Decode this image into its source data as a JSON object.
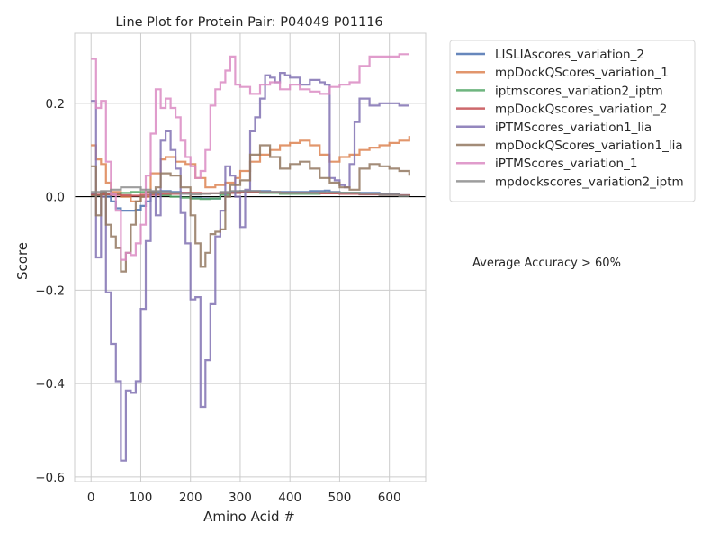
{
  "chart_data": {
    "type": "line",
    "title": "Line Plot for Protein Pair: P04049 P01116",
    "xlabel": "Amino Acid #",
    "ylabel": "Score",
    "xlim": [
      -33,
      673
    ],
    "ylim": [
      -0.61,
      0.35
    ],
    "xticks": [
      0,
      100,
      200,
      300,
      400,
      500,
      600
    ],
    "yticks": [
      -0.6,
      -0.4,
      -0.2,
      0.0,
      0.2
    ],
    "ytick_labels": [
      "−0.6",
      "−0.4",
      "−0.2",
      "0.0",
      "0.2"
    ],
    "grid": true,
    "zero_line": true,
    "legend_position": "outside-upper-right",
    "annotation": "Average Accuracy > 60%",
    "series": [
      {
        "name": "LISLIAscores_variation_2",
        "color": "#4c72b0",
        "x": [
          0,
          10,
          20,
          30,
          40,
          50,
          60,
          70,
          80,
          90,
          100,
          110,
          120,
          140,
          160,
          180,
          200,
          220,
          240,
          260,
          280,
          300,
          330,
          360,
          400,
          440,
          470,
          480,
          500,
          540,
          580,
          620,
          640
        ],
        "y": [
          0.005,
          0.003,
          0.008,
          0.0,
          -0.01,
          -0.025,
          -0.03,
          -0.03,
          -0.03,
          -0.028,
          -0.02,
          -0.01,
          0.01,
          0.012,
          0.01,
          0.008,
          -0.003,
          -0.004,
          -0.004,
          0.008,
          0.01,
          0.012,
          0.012,
          0.01,
          0.01,
          0.012,
          0.013,
          0.01,
          0.008,
          0.008,
          0.005,
          0.003,
          0.002
        ]
      },
      {
        "name": "mpDockQScores_variation_1",
        "color": "#dd8452",
        "x": [
          0,
          10,
          20,
          30,
          40,
          60,
          80,
          100,
          120,
          140,
          150,
          170,
          190,
          210,
          230,
          250,
          270,
          290,
          300,
          320,
          340,
          360,
          380,
          400,
          420,
          440,
          460,
          480,
          500,
          520,
          540,
          560,
          580,
          600,
          620,
          640
        ],
        "y": [
          0.11,
          0.08,
          0.07,
          0.03,
          0.01,
          0.0,
          -0.01,
          0.0,
          0.05,
          0.08,
          0.085,
          0.075,
          0.07,
          0.04,
          0.02,
          0.025,
          0.03,
          0.04,
          0.055,
          0.075,
          0.09,
          0.1,
          0.11,
          0.115,
          0.12,
          0.11,
          0.09,
          0.075,
          0.085,
          0.09,
          0.1,
          0.105,
          0.11,
          0.115,
          0.12,
          0.13
        ]
      },
      {
        "name": "iptmscores_variation2_iptm",
        "color": "#55a868",
        "x": [
          0,
          20,
          40,
          60,
          80,
          100,
          120,
          140,
          160,
          180,
          200,
          220,
          240,
          260,
          280,
          300,
          340,
          380,
          420,
          460,
          500,
          540,
          580,
          620,
          640
        ],
        "y": [
          0.003,
          0.005,
          0.006,
          0.008,
          0.01,
          0.01,
          0.006,
          0.003,
          0.0,
          -0.002,
          -0.004,
          -0.005,
          -0.004,
          0.004,
          0.008,
          0.01,
          0.008,
          0.006,
          0.006,
          0.008,
          0.008,
          0.006,
          0.004,
          0.002,
          0.001
        ]
      },
      {
        "name": "mpDockQscores_variation_2",
        "color": "#c44e52",
        "x": [
          0,
          20,
          40,
          60,
          80,
          100,
          140,
          180,
          220,
          260,
          300,
          340,
          380,
          420,
          460,
          500,
          540,
          580,
          620,
          640
        ],
        "y": [
          0.004,
          0.005,
          0.004,
          0.003,
          0.002,
          0.004,
          0.006,
          0.008,
          0.007,
          0.008,
          0.01,
          0.009,
          0.008,
          0.008,
          0.007,
          0.006,
          0.005,
          0.004,
          0.003,
          0.002
        ]
      },
      {
        "name": "iPTMScores_variation1_lia",
        "color": "#8172b3",
        "x": [
          0,
          10,
          20,
          30,
          40,
          50,
          60,
          70,
          80,
          90,
          100,
          110,
          120,
          130,
          140,
          150,
          160,
          170,
          180,
          190,
          200,
          210,
          220,
          230,
          240,
          250,
          260,
          270,
          280,
          290,
          300,
          310,
          320,
          330,
          340,
          350,
          360,
          370,
          380,
          390,
          400,
          420,
          440,
          460,
          470,
          480,
          490,
          500,
          510,
          520,
          530,
          540,
          560,
          580,
          600,
          620,
          640
        ],
        "y": [
          0.205,
          -0.13,
          0.0,
          -0.205,
          -0.315,
          -0.395,
          -0.565,
          -0.415,
          -0.42,
          -0.395,
          -0.24,
          -0.095,
          0.01,
          -0.04,
          0.12,
          0.14,
          0.1,
          0.06,
          -0.035,
          -0.1,
          -0.22,
          -0.215,
          -0.45,
          -0.35,
          -0.23,
          -0.085,
          -0.03,
          0.065,
          0.045,
          0.0,
          -0.065,
          0.015,
          0.14,
          0.17,
          0.21,
          0.26,
          0.255,
          0.245,
          0.265,
          0.26,
          0.255,
          0.24,
          0.25,
          0.245,
          0.24,
          0.04,
          0.035,
          0.025,
          0.02,
          0.07,
          0.16,
          0.21,
          0.195,
          0.2,
          0.2,
          0.195,
          0.195
        ]
      },
      {
        "name": "mpDockQScores_variation1_lia",
        "color": "#937860",
        "x": [
          0,
          10,
          20,
          30,
          40,
          50,
          60,
          70,
          80,
          90,
          100,
          110,
          120,
          130,
          140,
          160,
          180,
          200,
          210,
          220,
          230,
          240,
          250,
          260,
          270,
          280,
          300,
          320,
          340,
          360,
          380,
          400,
          420,
          440,
          460,
          480,
          500,
          520,
          540,
          560,
          580,
          600,
          620,
          640
        ],
        "y": [
          0.065,
          -0.04,
          0.01,
          -0.06,
          -0.085,
          -0.11,
          -0.16,
          -0.12,
          -0.06,
          -0.01,
          0.0,
          0.01,
          0.01,
          0.02,
          0.05,
          0.045,
          0.02,
          -0.04,
          -0.1,
          -0.15,
          -0.12,
          -0.08,
          -0.075,
          -0.07,
          0.0,
          0.025,
          0.035,
          0.09,
          0.11,
          0.085,
          0.06,
          0.07,
          0.075,
          0.06,
          0.04,
          0.03,
          0.02,
          0.015,
          0.06,
          0.07,
          0.065,
          0.06,
          0.055,
          0.045
        ]
      },
      {
        "name": "iPTMScores_variation_1",
        "color": "#da8bc3",
        "x": [
          0,
          10,
          20,
          30,
          40,
          50,
          60,
          70,
          80,
          90,
          100,
          110,
          120,
          130,
          140,
          150,
          160,
          170,
          180,
          190,
          200,
          210,
          220,
          230,
          240,
          250,
          260,
          270,
          280,
          290,
          300,
          320,
          340,
          360,
          380,
          400,
          420,
          440,
          460,
          480,
          500,
          520,
          540,
          560,
          580,
          600,
          620,
          640
        ],
        "y": [
          0.295,
          0.19,
          0.205,
          0.075,
          0.005,
          -0.03,
          -0.135,
          -0.12,
          -0.125,
          -0.1,
          -0.06,
          0.045,
          0.135,
          0.23,
          0.19,
          0.21,
          0.19,
          0.17,
          0.12,
          0.085,
          0.065,
          0.04,
          0.055,
          0.1,
          0.195,
          0.23,
          0.245,
          0.27,
          0.3,
          0.24,
          0.235,
          0.22,
          0.24,
          0.245,
          0.23,
          0.24,
          0.23,
          0.225,
          0.22,
          0.235,
          0.24,
          0.245,
          0.28,
          0.3,
          0.3,
          0.3,
          0.305,
          0.305
        ]
      },
      {
        "name": "mpdockscores_variation2_iptm",
        "color": "#8c8c8c",
        "x": [
          0,
          20,
          40,
          60,
          80,
          100,
          120,
          140,
          160,
          180,
          200,
          220,
          240,
          260,
          280,
          300,
          340,
          380,
          420,
          460,
          500,
          540,
          580,
          620,
          640
        ],
        "y": [
          0.01,
          0.012,
          0.015,
          0.02,
          0.02,
          0.015,
          0.012,
          0.01,
          0.008,
          0.006,
          0.005,
          0.006,
          0.007,
          0.01,
          0.012,
          0.012,
          0.01,
          0.008,
          0.008,
          0.009,
          0.008,
          0.006,
          0.004,
          0.002,
          0.002
        ]
      }
    ]
  }
}
